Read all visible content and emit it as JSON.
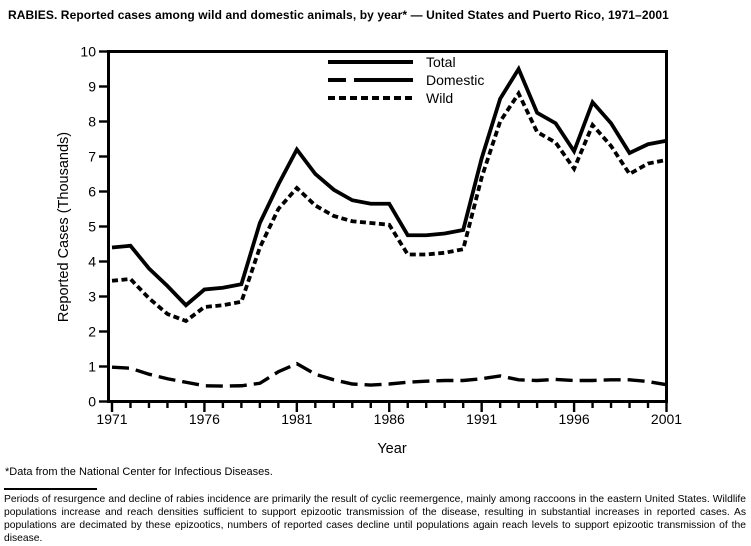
{
  "title": "RABIES. Reported cases among wild and domestic animals, by year* — United States and Puerto Rico, 1971–2001",
  "footnote": "*Data from the National Center for Infectious Diseases.",
  "caption": "Periods of resurgence and decline of rabies incidence are primarily the result of cyclic reemergence, mainly among raccoons in the eastern United States. Wildlife populations increase and reach densities sufficient to support epizootic transmission of the disease, resulting in substantial increases in reported cases. As populations are decimated by these epizootics, numbers of reported cases decline until populations again reach levels to support epizootic transmission of the disease.",
  "chart_data": {
    "type": "line",
    "title": "RABIES. Reported cases among wild and domestic animals, by year — United States and Puerto Rico, 1971–2001",
    "xlabel": "Year",
    "ylabel": "Reported Cases (Thousands)",
    "x": [
      1971,
      1972,
      1973,
      1974,
      1975,
      1976,
      1977,
      1978,
      1979,
      1980,
      1981,
      1982,
      1983,
      1984,
      1985,
      1986,
      1987,
      1988,
      1989,
      1990,
      1991,
      1992,
      1993,
      1994,
      1995,
      1996,
      1997,
      1998,
      1999,
      2000,
      2001
    ],
    "series": [
      {
        "name": "Total",
        "style": "solid",
        "values": [
          4.4,
          4.45,
          3.8,
          3.3,
          2.75,
          3.2,
          3.25,
          3.35,
          5.1,
          6.2,
          7.2,
          6.5,
          6.05,
          5.75,
          5.65,
          5.65,
          4.75,
          4.75,
          4.8,
          4.9,
          6.95,
          8.65,
          9.5,
          8.25,
          7.95,
          7.15,
          8.55,
          7.95,
          7.1,
          7.35,
          7.45
        ]
      },
      {
        "name": "Domestic",
        "style": "long-dash",
        "values": [
          0.98,
          0.95,
          0.78,
          0.65,
          0.55,
          0.45,
          0.44,
          0.45,
          0.52,
          0.85,
          1.08,
          0.78,
          0.62,
          0.5,
          0.47,
          0.5,
          0.55,
          0.58,
          0.6,
          0.6,
          0.65,
          0.73,
          0.62,
          0.6,
          0.63,
          0.6,
          0.6,
          0.62,
          0.62,
          0.57,
          0.48
        ]
      },
      {
        "name": "Wild",
        "style": "short-dash",
        "values": [
          3.45,
          3.5,
          2.95,
          2.5,
          2.3,
          2.7,
          2.75,
          2.85,
          4.4,
          5.5,
          6.1,
          5.6,
          5.3,
          5.15,
          5.1,
          5.05,
          4.2,
          4.2,
          4.25,
          4.35,
          6.4,
          8.0,
          8.8,
          7.7,
          7.4,
          6.65,
          7.9,
          7.3,
          6.5,
          6.8,
          6.9
        ]
      }
    ],
    "ylim": [
      0,
      10
    ],
    "yticks": [
      0,
      1,
      2,
      3,
      4,
      5,
      6,
      7,
      8,
      9,
      10
    ],
    "xticks_labeled": [
      1971,
      1976,
      1981,
      1986,
      1991,
      1996,
      2001
    ],
    "grid": false,
    "legend_position": "inside-top-center",
    "line_color": "#000000",
    "background": "#ffffff"
  }
}
